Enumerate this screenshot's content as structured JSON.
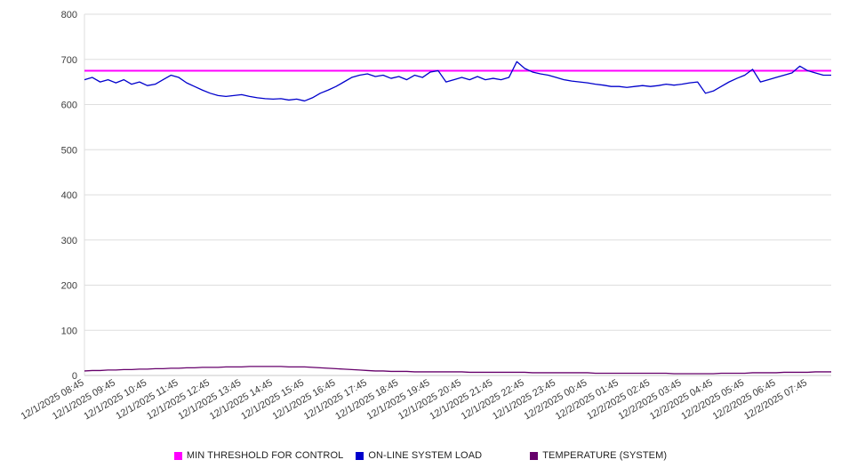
{
  "page": {
    "background": "#ffffff"
  },
  "chart_data": {
    "type": "line",
    "title": "",
    "xlabel": "",
    "ylabel": "",
    "ylim": [
      0,
      800
    ],
    "y_ticks": [
      0,
      100,
      200,
      300,
      400,
      500,
      600,
      700,
      800
    ],
    "grid": "horizontal",
    "legend_position": "bottom",
    "x_minutes_step": 15,
    "points_per_tick": 4,
    "x_tick_labels": [
      "12/1/2025 08:45",
      "12/1/2025 09:45",
      "12/1/2025 10:45",
      "12/1/2025 11:45",
      "12/1/2025 12:45",
      "12/1/2025 13:45",
      "12/1/2025 14:45",
      "12/1/2025 15:45",
      "12/1/2025 16:45",
      "12/1/2025 17:45",
      "12/1/2025 18:45",
      "12/1/2025 19:45",
      "12/1/2025 20:45",
      "12/1/2025 21:45",
      "12/1/2025 22:45",
      "12/1/2025 23:45",
      "12/2/2025 00:45",
      "12/2/2025 01:45",
      "12/2/2025 02:45",
      "12/2/2025 03:45",
      "12/2/2025 04:45",
      "12/2/2025 05:45",
      "12/2/2025 06:45",
      "12/2/2025 07:45"
    ],
    "series": [
      {
        "name": "MIN THRESHOLD FOR CONTROL",
        "color": "#ff00ff",
        "constant_value": 675
      },
      {
        "name": "ON-LINE SYSTEM LOAD",
        "color": "#0000cc",
        "values": [
          655,
          660,
          650,
          655,
          648,
          655,
          645,
          650,
          642,
          645,
          655,
          665,
          660,
          648,
          640,
          632,
          625,
          620,
          618,
          620,
          622,
          618,
          615,
          613,
          612,
          613,
          610,
          612,
          608,
          615,
          625,
          632,
          640,
          650,
          660,
          665,
          668,
          662,
          665,
          658,
          662,
          655,
          665,
          660,
          672,
          675,
          650,
          655,
          660,
          655,
          662,
          655,
          658,
          655,
          660,
          695,
          680,
          672,
          668,
          665,
          660,
          655,
          652,
          650,
          648,
          645,
          643,
          640,
          640,
          638,
          640,
          642,
          640,
          642,
          645,
          643,
          645,
          648,
          650,
          625,
          630,
          640,
          650,
          658,
          665,
          678,
          650,
          655,
          660,
          665,
          670,
          685,
          675,
          670,
          665,
          665
        ]
      },
      {
        "name": "TEMPERATURE (SYSTEM)",
        "color": "#66006b",
        "values": [
          10,
          11,
          11,
          12,
          12,
          13,
          13,
          14,
          14,
          15,
          15,
          16,
          16,
          17,
          17,
          18,
          18,
          18,
          19,
          19,
          19,
          20,
          20,
          20,
          20,
          20,
          19,
          19,
          19,
          18,
          17,
          16,
          15,
          14,
          13,
          12,
          11,
          10,
          10,
          9,
          9,
          9,
          8,
          8,
          8,
          8,
          8,
          8,
          8,
          7,
          7,
          7,
          7,
          7,
          7,
          7,
          7,
          6,
          6,
          6,
          6,
          6,
          6,
          6,
          6,
          5,
          5,
          5,
          5,
          5,
          5,
          5,
          5,
          5,
          5,
          4,
          4,
          4,
          4,
          4,
          4,
          5,
          5,
          5,
          5,
          6,
          6,
          6,
          6,
          7,
          7,
          7,
          7,
          8,
          8,
          8
        ]
      }
    ]
  }
}
